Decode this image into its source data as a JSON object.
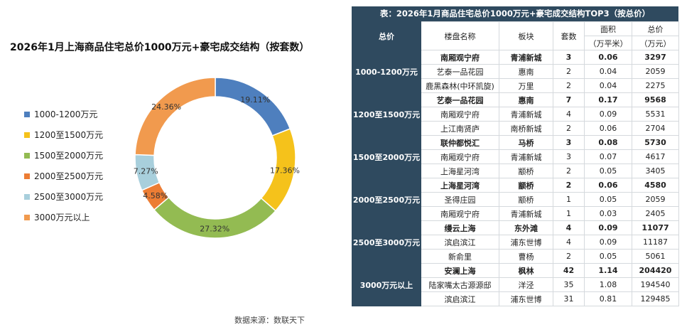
{
  "chart_data": {
    "type": "pie",
    "title": "2026年1月上海商品住宅总价1000万元+豪宅成交结构（按套数）",
    "categories": [
      "1000-1200万元",
      "1200至1500万元",
      "1500至2000万元",
      "2000至2500万元",
      "2500至3000万元",
      "3000万元以上"
    ],
    "values": [
      19.11,
      17.36,
      27.32,
      4.58,
      7.27,
      24.36
    ],
    "labels": [
      "19.11%",
      "17.36%",
      "27.32%",
      "4.58%",
      "7.27%",
      "24.36%"
    ],
    "colors": [
      "#4e7fbe",
      "#f5c21b",
      "#93bb52",
      "#ec7d34",
      "#a8cfdc",
      "#f19a4e"
    ],
    "donut": true,
    "legend_position": "left"
  },
  "source": "数据来源：数联天下",
  "table": {
    "title": "表：2026年1月商品住宅总价1000万元+豪宅成交结构TOP3（按总价）",
    "headers": {
      "group": "总价",
      "name": "楼盘名称",
      "block": "板块",
      "units": "套数",
      "area": "面积",
      "area_unit": "（万平米）",
      "price": "总价",
      "price_unit": "（万元）"
    },
    "groups": [
      {
        "label": "1000-1200万元",
        "rows": [
          {
            "name": "南厢观宁府",
            "block": "青浦新城",
            "units": "3",
            "area": "0.06",
            "price": "3297"
          },
          {
            "name": "艺泰一品花园",
            "block": "惠南",
            "units": "2",
            "area": "0.04",
            "price": "2059"
          },
          {
            "name": "鹿黑森林(中环凯旋)",
            "block": "万里",
            "units": "2",
            "area": "0.04",
            "price": "2275"
          }
        ]
      },
      {
        "label": "1200至1500万元",
        "rows": [
          {
            "name": "艺泰一品花园",
            "block": "惠南",
            "units": "7",
            "area": "0.17",
            "price": "9568"
          },
          {
            "name": "南厢观宁府",
            "block": "青浦新城",
            "units": "4",
            "area": "0.09",
            "price": "5531"
          },
          {
            "name": "上江南贤庐",
            "block": "南桥新城",
            "units": "2",
            "area": "0.06",
            "price": "2704"
          }
        ]
      },
      {
        "label": "1500至2000万元",
        "rows": [
          {
            "name": "联仲都悦汇",
            "block": "马桥",
            "units": "3",
            "area": "0.08",
            "price": "5730"
          },
          {
            "name": "南厢观宁府",
            "block": "青浦新城",
            "units": "3",
            "area": "0.07",
            "price": "4617"
          },
          {
            "name": "上海星河湾",
            "block": "颛桥",
            "units": "2",
            "area": "0.05",
            "price": "3405"
          }
        ]
      },
      {
        "label": "2000至2500万元",
        "rows": [
          {
            "name": "上海星河湾",
            "block": "颛桥",
            "units": "2",
            "area": "0.06",
            "price": "4580"
          },
          {
            "name": "圣得庄园",
            "block": "颛桥",
            "units": "1",
            "area": "0.05",
            "price": "2059"
          },
          {
            "name": "南厢观宁府",
            "block": "青浦新城",
            "units": "1",
            "area": "0.03",
            "price": "2405"
          }
        ]
      },
      {
        "label": "2500至3000万元",
        "rows": [
          {
            "name": "缦云上海",
            "block": "东外滩",
            "units": "4",
            "area": "0.09",
            "price": "11077"
          },
          {
            "name": "滨启滨江",
            "block": "浦东世博",
            "units": "4",
            "area": "0.09",
            "price": "11187"
          },
          {
            "name": "新俞里",
            "block": "曹杨",
            "units": "2",
            "area": "0.05",
            "price": "5061"
          }
        ]
      },
      {
        "label": "3000万元以上",
        "rows": [
          {
            "name": "安澜上海",
            "block": "枫林",
            "units": "42",
            "area": "1.14",
            "price": "204420"
          },
          {
            "name": "陆家嘴太古源源邸",
            "block": "洋泾",
            "units": "35",
            "area": "1.08",
            "price": "194540"
          },
          {
            "name": "滨启滨江",
            "block": "浦东世博",
            "units": "31",
            "area": "0.81",
            "price": "129485"
          }
        ]
      }
    ]
  }
}
